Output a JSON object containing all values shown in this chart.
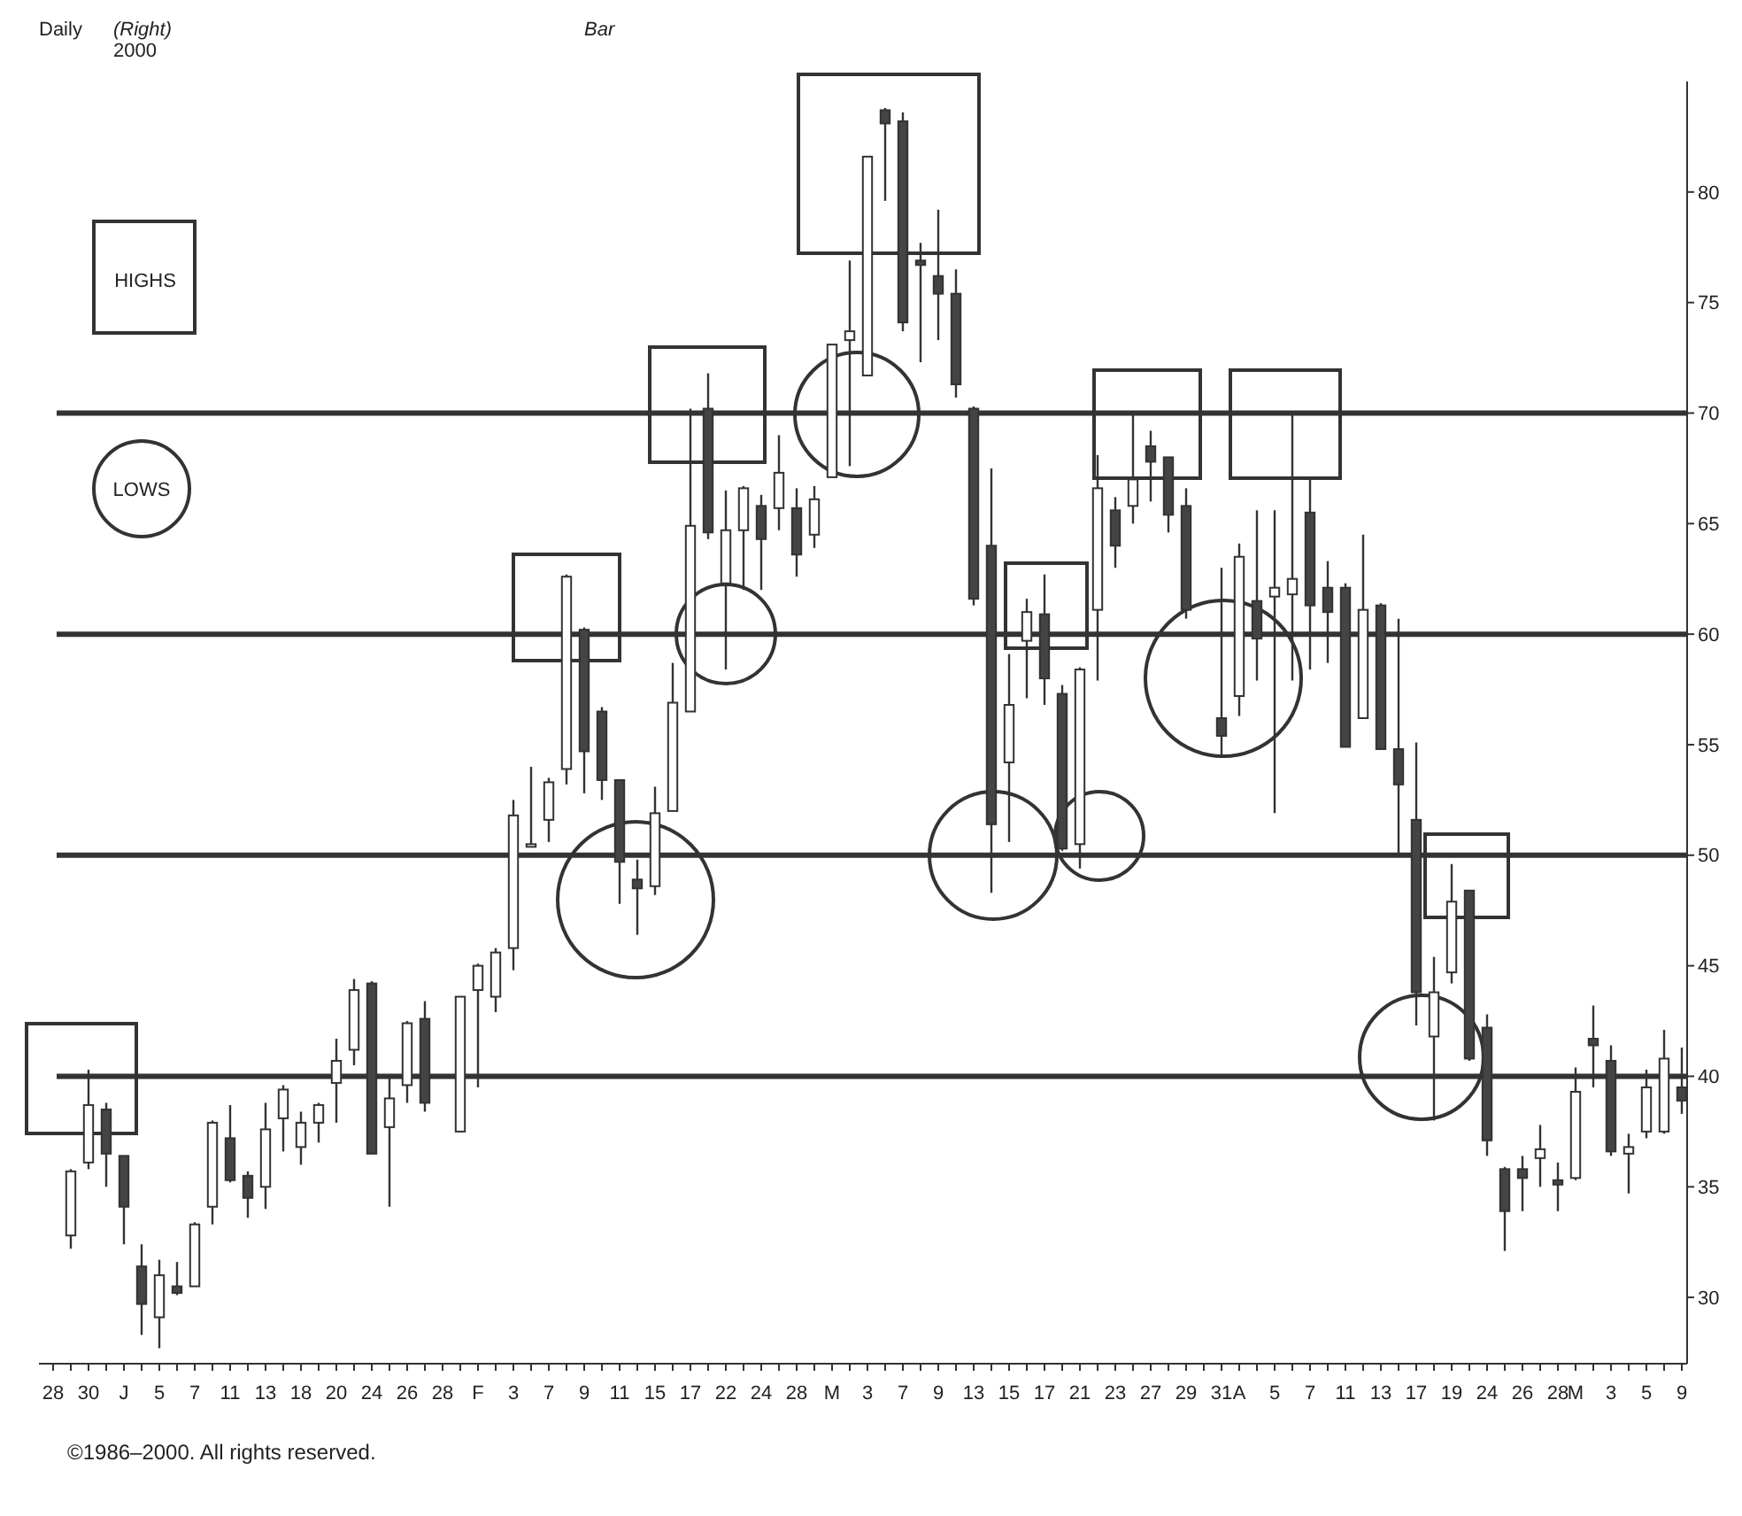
{
  "chart_data": {
    "type": "candlestick",
    "title": "Daily",
    "subtitle": "2000",
    "annotations": [
      "(Right)",
      "Bar",
      "HIGHS",
      "LOWS",
      "©1986–2000. All rights reserved."
    ],
    "categories": [
      "28",
      null,
      "30",
      null,
      "J",
      null,
      "5",
      null,
      "7",
      null,
      "11",
      null,
      "13",
      null,
      "18",
      null,
      "20",
      null,
      "24",
      null,
      "26",
      null,
      "28",
      null,
      "F",
      null,
      "3",
      null,
      "7",
      null,
      "9",
      null,
      "11",
      null,
      "15",
      null,
      "17",
      null,
      "22",
      null,
      "24",
      null,
      "28",
      null,
      "M",
      null,
      "3",
      null,
      "7",
      null,
      "9",
      null,
      "13",
      null,
      "15",
      null,
      "17",
      null,
      "21",
      null,
      "23",
      null,
      "27",
      null,
      "29",
      null,
      "31",
      "A",
      null,
      "5",
      null,
      "7",
      null,
      "11",
      null,
      "13",
      null,
      "17",
      null,
      "19",
      null,
      "24",
      null,
      "26",
      null,
      "28",
      "M",
      null,
      "3",
      null,
      "5",
      null,
      "9"
    ],
    "ohlc": [
      null,
      [
        32.8,
        35.8,
        32.2,
        35.7
      ],
      [
        36.1,
        40.3,
        35.8,
        38.7
      ],
      [
        38.5,
        38.8,
        35.0,
        36.5
      ],
      [
        36.4,
        36.4,
        32.4,
        34.1
      ],
      [
        31.4,
        32.4,
        28.3,
        29.7
      ],
      [
        29.1,
        31.7,
        27.7,
        31.0
      ],
      [
        30.5,
        31.6,
        30.1,
        30.2
      ],
      [
        30.5,
        33.4,
        30.5,
        33.3
      ],
      [
        34.1,
        38.0,
        33.3,
        37.9
      ],
      [
        37.2,
        38.7,
        35.2,
        35.3
      ],
      [
        35.5,
        35.7,
        33.6,
        34.5
      ],
      [
        35.0,
        38.8,
        34.0,
        37.6
      ],
      [
        38.1,
        39.6,
        36.6,
        39.4
      ],
      [
        36.8,
        38.4,
        36.0,
        37.9
      ],
      [
        37.9,
        38.8,
        37.0,
        38.7
      ],
      [
        39.7,
        41.7,
        37.9,
        40.7
      ],
      [
        41.2,
        44.4,
        40.5,
        43.9
      ],
      [
        44.2,
        44.3,
        36.5,
        36.5
      ],
      [
        37.7,
        40.0,
        34.1,
        39.0
      ],
      [
        39.6,
        42.5,
        38.8,
        42.4
      ],
      [
        42.6,
        43.4,
        38.4,
        38.8
      ],
      null,
      [
        37.5,
        43.6,
        37.5,
        43.6
      ],
      [
        43.9,
        45.1,
        39.5,
        45.0
      ],
      [
        43.6,
        45.8,
        42.9,
        45.6
      ],
      [
        45.8,
        52.5,
        44.8,
        51.8
      ],
      [
        50.5,
        54.0,
        50.4,
        50.5
      ],
      [
        51.6,
        53.5,
        50.6,
        53.3
      ],
      [
        53.9,
        62.7,
        53.2,
        62.6
      ],
      [
        60.2,
        60.3,
        52.8,
        54.7
      ],
      [
        56.5,
        56.7,
        52.5,
        53.4
      ],
      [
        53.4,
        53.4,
        47.8,
        49.7
      ],
      [
        48.9,
        49.8,
        46.4,
        48.5
      ],
      [
        48.6,
        53.1,
        48.2,
        51.9
      ],
      [
        52.0,
        58.7,
        52.0,
        56.9
      ],
      [
        56.5,
        70.2,
        56.5,
        64.9
      ],
      [
        70.2,
        71.8,
        64.3,
        64.6
      ],
      [
        62.3,
        66.5,
        58.4,
        64.7
      ],
      [
        64.7,
        66.7,
        62.0,
        66.6
      ],
      [
        65.8,
        66.3,
        62.0,
        64.3
      ],
      [
        65.7,
        69.0,
        64.7,
        67.3
      ],
      [
        65.7,
        66.6,
        62.6,
        63.6
      ],
      [
        64.5,
        66.7,
        63.9,
        66.1
      ],
      [
        67.1,
        73.1,
        67.1,
        73.1
      ],
      [
        73.3,
        76.9,
        67.6,
        73.7
      ],
      [
        71.7,
        81.6,
        71.7,
        81.6
      ],
      [
        83.7,
        83.8,
        79.6,
        83.1
      ],
      [
        83.2,
        83.6,
        73.7,
        74.1
      ],
      [
        76.9,
        77.7,
        72.3,
        76.7
      ],
      [
        76.2,
        79.2,
        73.3,
        75.4
      ],
      [
        75.4,
        76.5,
        70.7,
        71.3
      ],
      [
        70.2,
        70.3,
        61.3,
        61.6
      ],
      [
        64.0,
        67.5,
        48.3,
        51.4
      ],
      [
        54.2,
        59.1,
        50.6,
        56.8
      ],
      [
        59.7,
        61.6,
        57.1,
        61.0
      ],
      [
        60.9,
        62.7,
        56.8,
        58.0
      ],
      [
        57.3,
        57.7,
        50.2,
        50.3
      ],
      [
        50.5,
        58.5,
        49.4,
        58.4
      ],
      [
        61.1,
        68.1,
        57.9,
        66.6
      ],
      [
        65.6,
        66.2,
        63.0,
        64.0
      ],
      [
        65.8,
        69.9,
        65.0,
        67.0
      ],
      [
        68.5,
        69.2,
        66.0,
        67.8
      ],
      [
        68.0,
        68.0,
        64.6,
        65.4
      ],
      [
        65.8,
        66.6,
        60.7,
        61.1
      ],
      null,
      [
        56.2,
        63.0,
        54.4,
        55.4
      ],
      [
        57.2,
        64.1,
        56.3,
        63.5
      ],
      [
        61.5,
        65.6,
        57.9,
        59.8
      ],
      [
        61.7,
        65.6,
        51.9,
        62.1
      ],
      [
        61.8,
        69.9,
        57.9,
        62.5
      ],
      [
        65.5,
        67.0,
        58.4,
        61.3
      ],
      [
        62.1,
        63.3,
        58.7,
        61.0
      ],
      [
        62.1,
        62.3,
        54.9,
        54.9
      ],
      [
        56.2,
        64.5,
        56.2,
        61.1
      ],
      [
        61.3,
        61.4,
        54.8,
        54.8
      ],
      [
        54.8,
        60.7,
        50.1,
        53.2
      ],
      [
        51.6,
        55.1,
        42.3,
        43.8
      ],
      [
        41.8,
        45.4,
        38.0,
        43.8
      ],
      [
        44.7,
        49.6,
        44.2,
        47.9
      ],
      [
        48.4,
        48.4,
        40.7,
        40.8
      ],
      [
        42.2,
        42.8,
        36.4,
        37.1
      ],
      [
        35.8,
        35.9,
        32.1,
        33.9
      ],
      [
        35.8,
        36.4,
        33.9,
        35.4
      ],
      [
        36.3,
        37.8,
        35.0,
        36.7
      ],
      [
        35.3,
        36.1,
        33.9,
        35.1
      ],
      [
        35.4,
        40.4,
        35.3,
        39.3
      ],
      [
        41.7,
        43.2,
        39.5,
        41.4
      ],
      [
        40.7,
        41.4,
        36.4,
        36.6
      ],
      [
        36.5,
        37.4,
        34.7,
        36.8
      ],
      [
        37.5,
        40.3,
        37.2,
        39.5
      ],
      [
        37.5,
        42.1,
        37.4,
        40.8
      ],
      [
        39.5,
        41.3,
        38.3,
        38.9
      ]
    ],
    "ylim": [
      27,
      85
    ],
    "yticks": [
      30,
      35,
      40,
      45,
      50,
      55,
      60,
      65,
      70,
      75,
      80
    ],
    "ref_lines": [
      {
        "axis": "y",
        "value": 40
      },
      {
        "axis": "y",
        "value": 50
      },
      {
        "axis": "y",
        "value": 60
      },
      {
        "axis": "y",
        "value": 70
      }
    ]
  }
}
